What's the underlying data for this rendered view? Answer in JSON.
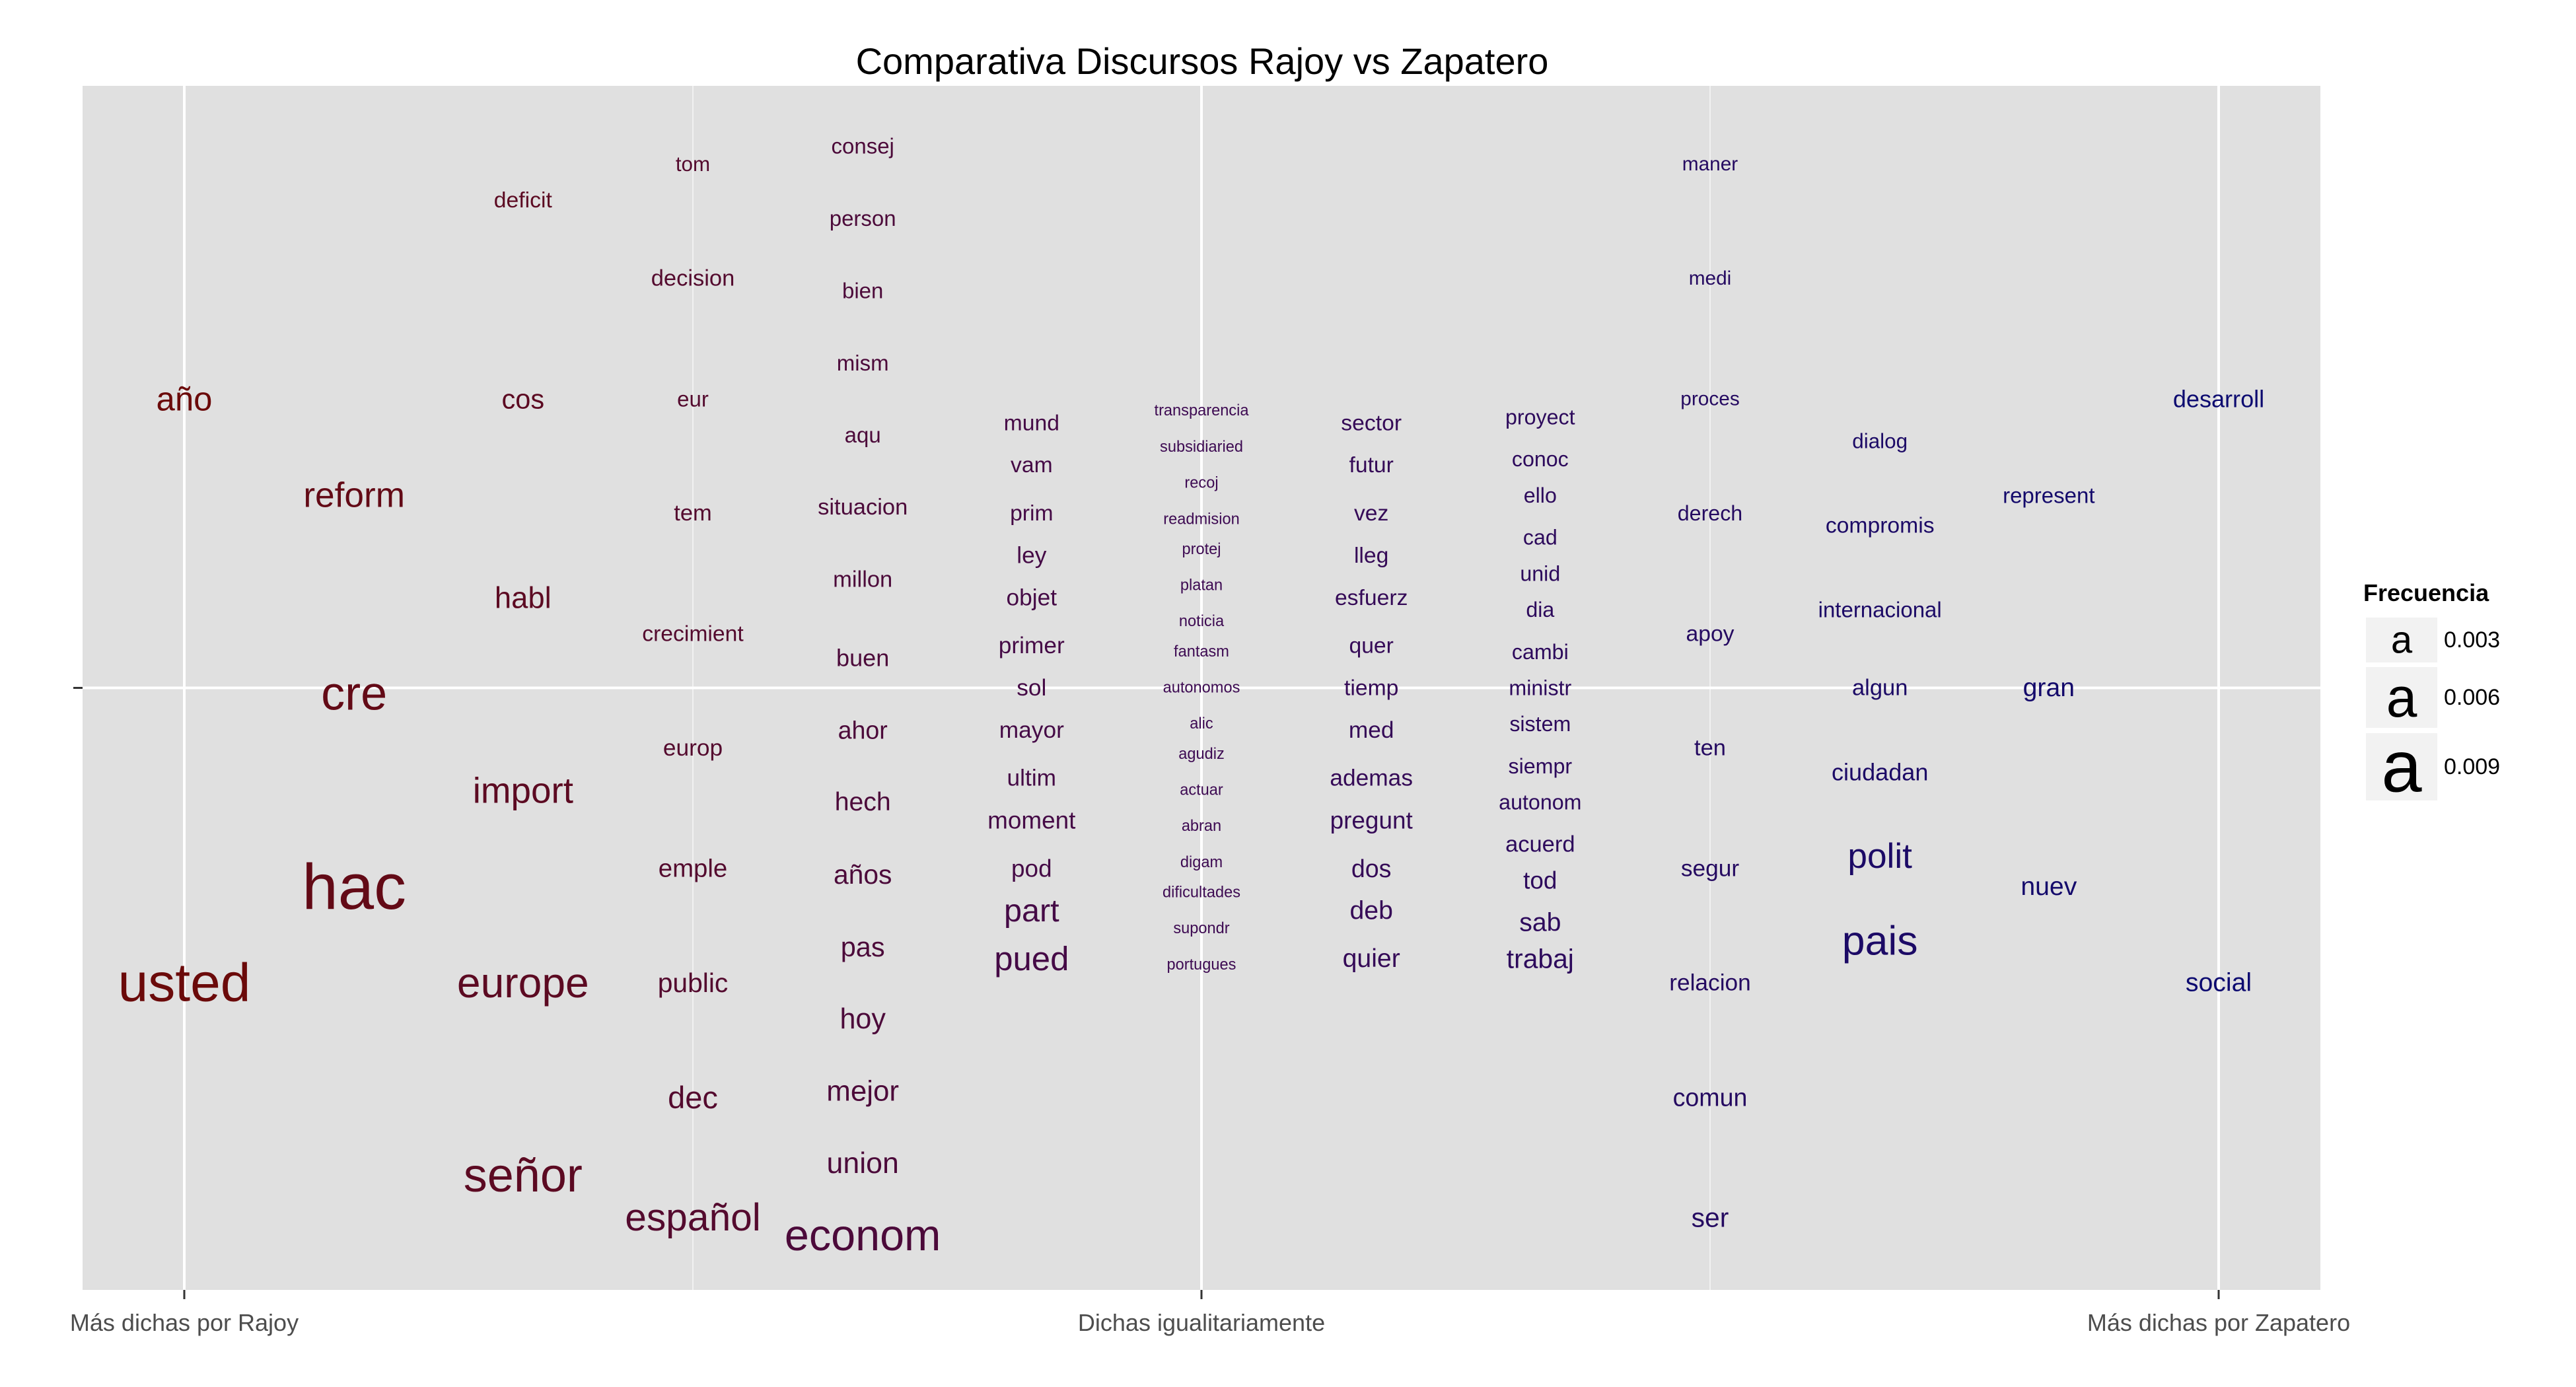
{
  "chart_data": {
    "type": "scatter",
    "title": "Comparativa Discursos Rajoy vs Zapatero",
    "xlabel": "",
    "ylabel": "",
    "x_ticks": [
      {
        "value": -1,
        "label": "Más dichas por Rajoy"
      },
      {
        "value": 0,
        "label": "Dichas igualitariamente"
      },
      {
        "value": 1,
        "label": "Más dichas por Zapatero"
      }
    ],
    "y_ticks": [
      {
        "value": 0,
        "label": ""
      }
    ],
    "xlim": [
      -1.1,
      1.1
    ],
    "ylim": [
      -1.0,
      1.0
    ],
    "grid": true,
    "legend": {
      "title": "Frecuencia",
      "position": "right",
      "entries": [
        {
          "symbol": "a",
          "label": "0.003"
        },
        {
          "symbol": "a",
          "label": "0.006"
        },
        {
          "symbol": "a",
          "label": "0.009"
        }
      ]
    },
    "colors": {
      "rajoy": "#6b0a0a",
      "middle": "#3d0a52",
      "zapatero": "#0c0a70",
      "panel": "#e0e0e0",
      "grid": "#ffffff"
    },
    "words": [
      {
        "text": "año",
        "x": -1.0,
        "y": 0.48,
        "freq": 0.0055
      },
      {
        "text": "usted",
        "x": -1.0,
        "y": -0.49,
        "freq": 0.0095
      },
      {
        "text": "reform",
        "x": -0.833,
        "y": 0.32,
        "freq": 0.0058
      },
      {
        "text": "cre",
        "x": -0.833,
        "y": -0.01,
        "freq": 0.0082
      },
      {
        "text": "hac",
        "x": -0.833,
        "y": -0.33,
        "freq": 0.0115
      },
      {
        "text": "deficit",
        "x": -0.667,
        "y": 0.81,
        "freq": 0.0033
      },
      {
        "text": "cos",
        "x": -0.667,
        "y": 0.48,
        "freq": 0.0043
      },
      {
        "text": "habl",
        "x": -0.667,
        "y": 0.15,
        "freq": 0.0048
      },
      {
        "text": "import",
        "x": -0.667,
        "y": -0.17,
        "freq": 0.006
      },
      {
        "text": "europe",
        "x": -0.667,
        "y": -0.49,
        "freq": 0.0072
      },
      {
        "text": "señor",
        "x": -0.667,
        "y": -0.81,
        "freq": 0.0082
      },
      {
        "text": "tom",
        "x": -0.5,
        "y": 0.87,
        "freq": 0.003
      },
      {
        "text": "decision",
        "x": -0.5,
        "y": 0.68,
        "freq": 0.0034
      },
      {
        "text": "eur",
        "x": -0.5,
        "y": 0.48,
        "freq": 0.0032
      },
      {
        "text": "tem",
        "x": -0.5,
        "y": 0.29,
        "freq": 0.0034
      },
      {
        "text": "crecimient",
        "x": -0.5,
        "y": 0.09,
        "freq": 0.0033
      },
      {
        "text": "europ",
        "x": -0.5,
        "y": -0.1,
        "freq": 0.0035
      },
      {
        "text": "emple",
        "x": -0.5,
        "y": -0.3,
        "freq": 0.0039
      },
      {
        "text": "public",
        "x": -0.5,
        "y": -0.49,
        "freq": 0.0042
      },
      {
        "text": "dec",
        "x": -0.5,
        "y": -0.68,
        "freq": 0.005
      },
      {
        "text": "español",
        "x": -0.5,
        "y": -0.88,
        "freq": 0.0065
      },
      {
        "text": "consej",
        "x": -0.333,
        "y": 0.9,
        "freq": 0.0032
      },
      {
        "text": "person",
        "x": -0.333,
        "y": 0.78,
        "freq": 0.0032
      },
      {
        "text": "bien",
        "x": -0.333,
        "y": 0.66,
        "freq": 0.0032
      },
      {
        "text": "mism",
        "x": -0.333,
        "y": 0.54,
        "freq": 0.0032
      },
      {
        "text": "aqu",
        "x": -0.333,
        "y": 0.42,
        "freq": 0.0032
      },
      {
        "text": "situacion",
        "x": -0.333,
        "y": 0.3,
        "freq": 0.0034
      },
      {
        "text": "millon",
        "x": -0.333,
        "y": 0.18,
        "freq": 0.0034
      },
      {
        "text": "buen",
        "x": -0.333,
        "y": 0.05,
        "freq": 0.0036
      },
      {
        "text": "ahor",
        "x": -0.333,
        "y": -0.07,
        "freq": 0.0038
      },
      {
        "text": "hech",
        "x": -0.333,
        "y": -0.19,
        "freq": 0.004
      },
      {
        "text": "años",
        "x": -0.333,
        "y": -0.31,
        "freq": 0.0042
      },
      {
        "text": "pas",
        "x": -0.333,
        "y": -0.43,
        "freq": 0.0043
      },
      {
        "text": "hoy",
        "x": -0.333,
        "y": -0.55,
        "freq": 0.0045
      },
      {
        "text": "mejor",
        "x": -0.333,
        "y": -0.67,
        "freq": 0.0046
      },
      {
        "text": "union",
        "x": -0.333,
        "y": -0.79,
        "freq": 0.0047
      },
      {
        "text": "econom",
        "x": -0.333,
        "y": -0.91,
        "freq": 0.0075
      },
      {
        "text": "mund",
        "x": -0.167,
        "y": 0.44,
        "freq": 0.0033
      },
      {
        "text": "vam",
        "x": -0.167,
        "y": 0.37,
        "freq": 0.0033
      },
      {
        "text": "prim",
        "x": -0.167,
        "y": 0.29,
        "freq": 0.0033
      },
      {
        "text": "ley",
        "x": -0.167,
        "y": 0.22,
        "freq": 0.0035
      },
      {
        "text": "objet",
        "x": -0.167,
        "y": 0.15,
        "freq": 0.0035
      },
      {
        "text": "primer",
        "x": -0.167,
        "y": 0.07,
        "freq": 0.0035
      },
      {
        "text": "sol",
        "x": -0.167,
        "y": 0.0,
        "freq": 0.0035
      },
      {
        "text": "mayor",
        "x": -0.167,
        "y": -0.07,
        "freq": 0.0035
      },
      {
        "text": "ultim",
        "x": -0.167,
        "y": -0.15,
        "freq": 0.0035
      },
      {
        "text": "moment",
        "x": -0.167,
        "y": -0.22,
        "freq": 0.0037
      },
      {
        "text": "pod",
        "x": -0.167,
        "y": -0.3,
        "freq": 0.0037
      },
      {
        "text": "part",
        "x": -0.167,
        "y": -0.37,
        "freq": 0.0052
      },
      {
        "text": "pued",
        "x": -0.167,
        "y": -0.45,
        "freq": 0.0055
      },
      {
        "text": "transparencia",
        "x": 0.0,
        "y": 0.46,
        "freq": 0.002
      },
      {
        "text": "subsidiaried",
        "x": 0.0,
        "y": 0.4,
        "freq": 0.002
      },
      {
        "text": "recoj",
        "x": 0.0,
        "y": 0.34,
        "freq": 0.002
      },
      {
        "text": "readmision",
        "x": 0.0,
        "y": 0.28,
        "freq": 0.002
      },
      {
        "text": "protej",
        "x": 0.0,
        "y": 0.23,
        "freq": 0.002
      },
      {
        "text": "platan",
        "x": 0.0,
        "y": 0.17,
        "freq": 0.002
      },
      {
        "text": "noticia",
        "x": 0.0,
        "y": 0.11,
        "freq": 0.002
      },
      {
        "text": "fantasm",
        "x": 0.0,
        "y": 0.06,
        "freq": 0.002
      },
      {
        "text": "autonomos",
        "x": 0.0,
        "y": 0.0,
        "freq": 0.002
      },
      {
        "text": "alic",
        "x": 0.0,
        "y": -0.06,
        "freq": 0.002
      },
      {
        "text": "agudiz",
        "x": 0.0,
        "y": -0.11,
        "freq": 0.002
      },
      {
        "text": "actuar",
        "x": 0.0,
        "y": -0.17,
        "freq": 0.002
      },
      {
        "text": "abran",
        "x": 0.0,
        "y": -0.23,
        "freq": 0.002
      },
      {
        "text": "digam",
        "x": 0.0,
        "y": -0.29,
        "freq": 0.002
      },
      {
        "text": "dificultades",
        "x": 0.0,
        "y": -0.34,
        "freq": 0.002
      },
      {
        "text": "supondr",
        "x": 0.0,
        "y": -0.4,
        "freq": 0.002
      },
      {
        "text": "portugues",
        "x": 0.0,
        "y": -0.46,
        "freq": 0.002
      },
      {
        "text": "sector",
        "x": 0.167,
        "y": 0.44,
        "freq": 0.0033
      },
      {
        "text": "futur",
        "x": 0.167,
        "y": 0.37,
        "freq": 0.0033
      },
      {
        "text": "vez",
        "x": 0.167,
        "y": 0.29,
        "freq": 0.0033
      },
      {
        "text": "lleg",
        "x": 0.167,
        "y": 0.22,
        "freq": 0.0033
      },
      {
        "text": "esfuerz",
        "x": 0.167,
        "y": 0.15,
        "freq": 0.0033
      },
      {
        "text": "quer",
        "x": 0.167,
        "y": 0.07,
        "freq": 0.0033
      },
      {
        "text": "tiemp",
        "x": 0.167,
        "y": 0.0,
        "freq": 0.0033
      },
      {
        "text": "med",
        "x": 0.167,
        "y": -0.07,
        "freq": 0.0035
      },
      {
        "text": "ademas",
        "x": 0.167,
        "y": -0.15,
        "freq": 0.0035
      },
      {
        "text": "pregunt",
        "x": 0.167,
        "y": -0.22,
        "freq": 0.0037
      },
      {
        "text": "dos",
        "x": 0.167,
        "y": -0.3,
        "freq": 0.0038
      },
      {
        "text": "deb",
        "x": 0.167,
        "y": -0.37,
        "freq": 0.004
      },
      {
        "text": "quier",
        "x": 0.167,
        "y": -0.45,
        "freq": 0.004
      },
      {
        "text": "proyect",
        "x": 0.333,
        "y": 0.45,
        "freq": 0.0031
      },
      {
        "text": "conoc",
        "x": 0.333,
        "y": 0.38,
        "freq": 0.0031
      },
      {
        "text": "ello",
        "x": 0.333,
        "y": 0.32,
        "freq": 0.0031
      },
      {
        "text": "cad",
        "x": 0.333,
        "y": 0.25,
        "freq": 0.0031
      },
      {
        "text": "unid",
        "x": 0.333,
        "y": 0.19,
        "freq": 0.0031
      },
      {
        "text": "dia",
        "x": 0.333,
        "y": 0.13,
        "freq": 0.0031
      },
      {
        "text": "cambi",
        "x": 0.333,
        "y": 0.06,
        "freq": 0.0031
      },
      {
        "text": "ministr",
        "x": 0.333,
        "y": 0.0,
        "freq": 0.0031
      },
      {
        "text": "sistem",
        "x": 0.333,
        "y": -0.06,
        "freq": 0.0031
      },
      {
        "text": "siempr",
        "x": 0.333,
        "y": -0.13,
        "freq": 0.0031
      },
      {
        "text": "autonom",
        "x": 0.333,
        "y": -0.19,
        "freq": 0.0031
      },
      {
        "text": "acuerd",
        "x": 0.333,
        "y": -0.26,
        "freq": 0.0034
      },
      {
        "text": "tod",
        "x": 0.333,
        "y": -0.32,
        "freq": 0.0037
      },
      {
        "text": "sab",
        "x": 0.333,
        "y": -0.39,
        "freq": 0.004
      },
      {
        "text": "trabaj",
        "x": 0.333,
        "y": -0.45,
        "freq": 0.0042
      },
      {
        "text": "maner",
        "x": 0.5,
        "y": 0.87,
        "freq": 0.0028
      },
      {
        "text": "medi",
        "x": 0.5,
        "y": 0.68,
        "freq": 0.0028
      },
      {
        "text": "proces",
        "x": 0.5,
        "y": 0.48,
        "freq": 0.0028
      },
      {
        "text": "derech",
        "x": 0.5,
        "y": 0.29,
        "freq": 0.0031
      },
      {
        "text": "apoy",
        "x": 0.5,
        "y": 0.09,
        "freq": 0.0033
      },
      {
        "text": "ten",
        "x": 0.5,
        "y": -0.1,
        "freq": 0.0034
      },
      {
        "text": "segur",
        "x": 0.5,
        "y": -0.3,
        "freq": 0.0035
      },
      {
        "text": "relacion",
        "x": 0.5,
        "y": -0.49,
        "freq": 0.0035
      },
      {
        "text": "comun",
        "x": 0.5,
        "y": -0.68,
        "freq": 0.0038
      },
      {
        "text": "ser",
        "x": 0.5,
        "y": -0.88,
        "freq": 0.0042
      },
      {
        "text": "dialog",
        "x": 0.667,
        "y": 0.41,
        "freq": 0.003
      },
      {
        "text": "compromis",
        "x": 0.667,
        "y": 0.27,
        "freq": 0.0033
      },
      {
        "text": "internacional",
        "x": 0.667,
        "y": 0.13,
        "freq": 0.0032
      },
      {
        "text": "algun",
        "x": 0.667,
        "y": 0.0,
        "freq": 0.0034
      },
      {
        "text": "ciudadan",
        "x": 0.667,
        "y": -0.14,
        "freq": 0.0036
      },
      {
        "text": "polit",
        "x": 0.667,
        "y": -0.28,
        "freq": 0.0058
      },
      {
        "text": "pais",
        "x": 0.667,
        "y": -0.42,
        "freq": 0.007
      },
      {
        "text": "represent",
        "x": 0.833,
        "y": 0.32,
        "freq": 0.0032
      },
      {
        "text": "gran",
        "x": 0.833,
        "y": 0.0,
        "freq": 0.004
      },
      {
        "text": "nuev",
        "x": 0.833,
        "y": -0.33,
        "freq": 0.004
      },
      {
        "text": "desarroll",
        "x": 1.0,
        "y": 0.48,
        "freq": 0.0036
      },
      {
        "text": "social",
        "x": 1.0,
        "y": -0.49,
        "freq": 0.004
      }
    ]
  }
}
